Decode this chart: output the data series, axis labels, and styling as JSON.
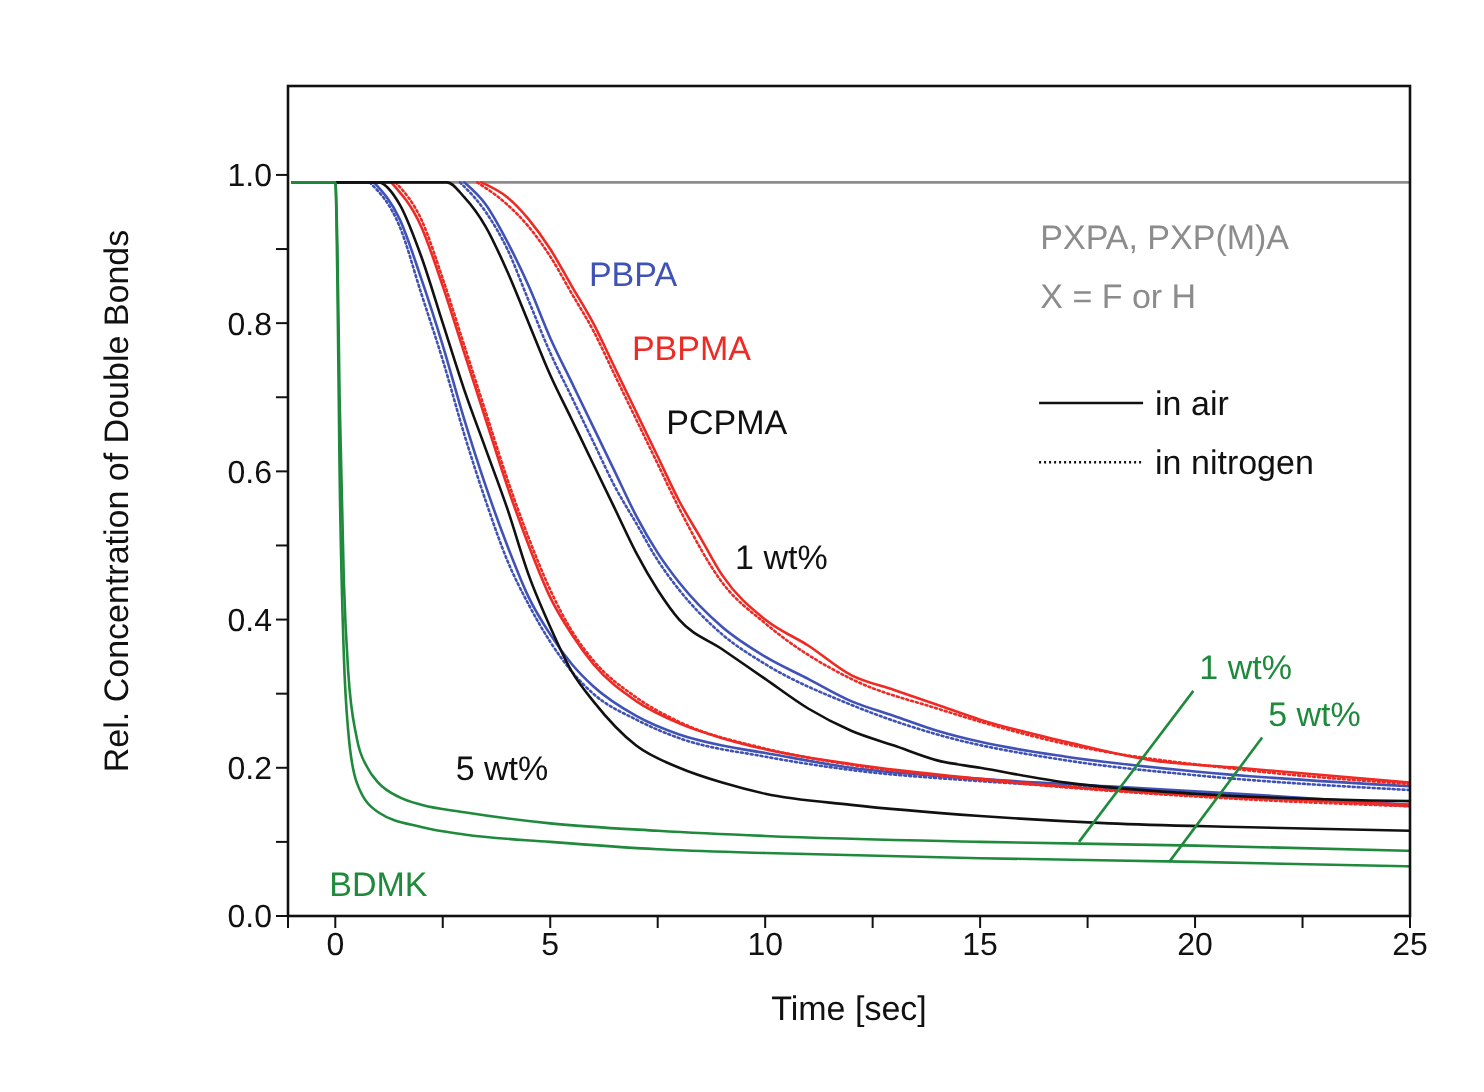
{
  "chart_data": {
    "type": "line",
    "xlabel": "Time [sec]",
    "ylabel": "Rel. Concentration of Double Bonds",
    "xlim": [
      -1.1,
      25
    ],
    "xticks": [
      {
        "value": -1.1,
        "label": null
      },
      0,
      {
        "value": 2.5,
        "label": null
      },
      5,
      {
        "value": 7.5,
        "label": null
      },
      10,
      {
        "value": 12.5,
        "label": null
      },
      15,
      {
        "value": 17.5,
        "label": null
      },
      20,
      {
        "value": 22.5,
        "label": null
      },
      25
    ],
    "ylim": [
      0,
      1.12
    ],
    "yticks": [
      {
        "value": 0,
        "label": "0.0"
      },
      {
        "value": 0.1,
        "label": null
      },
      {
        "value": 0.2,
        "label": "0.2"
      },
      {
        "value": 0.3,
        "label": null
      },
      {
        "value": 0.4,
        "label": "0.4"
      },
      {
        "value": 0.5,
        "label": null
      },
      {
        "value": 0.6,
        "label": "0.6"
      },
      {
        "value": 0.7,
        "label": null
      },
      {
        "value": 0.8,
        "label": "0.8"
      },
      {
        "value": 0.9,
        "label": null
      },
      {
        "value": 1.0,
        "label": "1.0"
      }
    ],
    "grid": false,
    "series": [
      {
        "name": "PXPA, PXP(M)A",
        "color": "#8c8c8c",
        "line_style": "solid",
        "x": [
          -1,
          5,
          10,
          15,
          20,
          25
        ],
        "values": [
          0.99,
          0.99,
          0.99,
          0.99,
          0.99,
          0.99
        ]
      },
      {
        "name": "PBPA",
        "color": "#4052b5",
        "line_style": "solid",
        "x": [
          3,
          3.5,
          4,
          4.5,
          5,
          5.5,
          6,
          6.5,
          7,
          7.5,
          8,
          9,
          10,
          11,
          12,
          13,
          14,
          15,
          17,
          20,
          25
        ],
        "values": [
          0.99,
          0.96,
          0.91,
          0.85,
          0.78,
          0.72,
          0.66,
          0.6,
          0.54,
          0.49,
          0.45,
          0.39,
          0.35,
          0.32,
          0.29,
          0.27,
          0.25,
          0.235,
          0.215,
          0.195,
          0.175
        ]
      },
      {
        "color": "#4052b5",
        "line_style": "dotted",
        "x": [
          2.9,
          3.5,
          4,
          4.5,
          5,
          5.5,
          6,
          6.5,
          7,
          7.5,
          8,
          9,
          10,
          12,
          14,
          17,
          20,
          25
        ],
        "values": [
          0.99,
          0.95,
          0.9,
          0.83,
          0.76,
          0.7,
          0.64,
          0.58,
          0.53,
          0.48,
          0.44,
          0.38,
          0.34,
          0.285,
          0.245,
          0.21,
          0.19,
          0.17
        ]
      },
      {
        "color": "#4052b5",
        "line_style": "solid",
        "x": [
          0.9,
          1.5,
          2,
          2.5,
          3,
          3.5,
          4,
          4.5,
          5,
          5.5,
          6,
          7,
          8,
          9,
          10,
          12,
          15,
          18,
          21,
          25
        ],
        "values": [
          0.99,
          0.94,
          0.86,
          0.77,
          0.67,
          0.58,
          0.5,
          0.43,
          0.38,
          0.34,
          0.31,
          0.27,
          0.245,
          0.23,
          0.22,
          0.2,
          0.185,
          0.175,
          0.165,
          0.15
        ]
      },
      {
        "color": "#4052b5",
        "line_style": "dotted",
        "x": [
          0.8,
          1.5,
          2,
          2.5,
          3,
          3.5,
          4,
          4.5,
          5,
          5.5,
          6,
          7,
          8,
          10,
          12,
          15,
          18,
          21,
          25
        ],
        "values": [
          0.99,
          0.93,
          0.84,
          0.75,
          0.65,
          0.56,
          0.48,
          0.42,
          0.37,
          0.33,
          0.3,
          0.265,
          0.24,
          0.215,
          0.197,
          0.182,
          0.172,
          0.163,
          0.148
        ]
      },
      {
        "name": "PBPMA",
        "color": "#ee2a24",
        "line_style": "solid",
        "x": [
          3.4,
          4,
          4.5,
          5,
          5.5,
          6,
          6.5,
          7,
          7.5,
          8,
          8.5,
          9,
          10,
          11,
          12,
          13,
          14,
          15,
          17,
          19,
          21,
          25
        ],
        "values": [
          0.99,
          0.97,
          0.94,
          0.9,
          0.85,
          0.8,
          0.74,
          0.68,
          0.62,
          0.56,
          0.51,
          0.46,
          0.4,
          0.365,
          0.325,
          0.305,
          0.285,
          0.265,
          0.235,
          0.21,
          0.2,
          0.18
        ]
      },
      {
        "color": "#ee2a24",
        "line_style": "dotted",
        "x": [
          3.3,
          4,
          4.5,
          5,
          5.5,
          6,
          6.5,
          7,
          7.5,
          8,
          9,
          10,
          12,
          14,
          17,
          21,
          25
        ],
        "values": [
          0.99,
          0.96,
          0.93,
          0.89,
          0.84,
          0.79,
          0.73,
          0.67,
          0.61,
          0.55,
          0.45,
          0.395,
          0.32,
          0.28,
          0.232,
          0.198,
          0.178
        ]
      },
      {
        "color": "#ee2a24",
        "line_style": "solid",
        "x": [
          1.3,
          2,
          2.5,
          3,
          3.5,
          4,
          4.5,
          5,
          5.5,
          6,
          7,
          8,
          9,
          10,
          12,
          15,
          18,
          21,
          25
        ],
        "values": [
          0.99,
          0.93,
          0.85,
          0.76,
          0.67,
          0.58,
          0.5,
          0.43,
          0.38,
          0.34,
          0.29,
          0.26,
          0.24,
          0.225,
          0.205,
          0.185,
          0.17,
          0.16,
          0.15
        ]
      },
      {
        "color": "#ee2a24",
        "line_style": "dotted",
        "x": [
          1.4,
          2,
          2.5,
          3,
          3.5,
          4,
          4.5,
          5,
          5.5,
          6,
          7,
          8,
          10,
          12,
          15,
          18,
          21,
          25
        ],
        "values": [
          0.99,
          0.94,
          0.86,
          0.77,
          0.68,
          0.59,
          0.51,
          0.44,
          0.385,
          0.345,
          0.295,
          0.262,
          0.226,
          0.204,
          0.184,
          0.169,
          0.158,
          0.148
        ]
      },
      {
        "name": "PCPMA",
        "color": "#111111",
        "line_style": "solid",
        "x": [
          -1,
          2.6,
          3,
          3.5,
          4,
          4.5,
          5,
          5.5,
          6,
          6.5,
          7,
          7.5,
          8,
          9,
          10,
          11,
          12,
          13,
          14,
          15,
          17,
          20,
          25
        ],
        "values": [
          0.99,
          0.99,
          0.97,
          0.93,
          0.87,
          0.8,
          0.73,
          0.67,
          0.61,
          0.55,
          0.49,
          0.44,
          0.4,
          0.36,
          0.32,
          0.28,
          0.25,
          0.23,
          0.21,
          0.2,
          0.18,
          0.165,
          0.155
        ]
      },
      {
        "color": "#111111",
        "line_style": "solid",
        "x": [
          -1,
          1,
          1.5,
          2,
          2.5,
          3,
          3.5,
          4,
          4.5,
          5,
          5.5,
          6,
          7,
          8,
          9,
          10,
          12,
          15,
          18,
          21,
          25
        ],
        "values": [
          0.99,
          0.99,
          0.96,
          0.89,
          0.8,
          0.71,
          0.63,
          0.55,
          0.46,
          0.39,
          0.33,
          0.29,
          0.23,
          0.2,
          0.18,
          0.165,
          0.15,
          0.135,
          0.125,
          0.12,
          0.115
        ]
      },
      {
        "name": "BDMK",
        "color": "#1f8a3c",
        "line_style": "solid",
        "x": [
          -1,
          0,
          0.05,
          0.1,
          0.2,
          0.3,
          0.5,
          0.75,
          1,
          1.5,
          2,
          3,
          5,
          7.5,
          10,
          15,
          20,
          25
        ],
        "values": [
          0.99,
          0.99,
          0.9,
          0.7,
          0.45,
          0.33,
          0.24,
          0.2,
          0.18,
          0.16,
          0.15,
          0.14,
          0.125,
          0.115,
          0.108,
          0.1,
          0.095,
          0.088
        ]
      },
      {
        "color": "#1f8a3c",
        "line_style": "solid",
        "x": [
          -1,
          0,
          0.05,
          0.1,
          0.2,
          0.3,
          0.5,
          1,
          2,
          3,
          5,
          7.5,
          10,
          15,
          20,
          25
        ],
        "values": [
          0.99,
          0.99,
          0.85,
          0.6,
          0.35,
          0.25,
          0.18,
          0.14,
          0.12,
          0.11,
          0.1,
          0.09,
          0.085,
          0.078,
          0.073,
          0.067
        ]
      }
    ],
    "annotations": [
      "X = F or H",
      "in air",
      "in nitrogen",
      "1 wt%",
      "5 wt%",
      {
        "text": "1 wt%",
        "x": 17.3,
        "y": 0.1
      },
      {
        "text": "5 wt%",
        "x": 19.4,
        "y": 0.073
      }
    ]
  }
}
